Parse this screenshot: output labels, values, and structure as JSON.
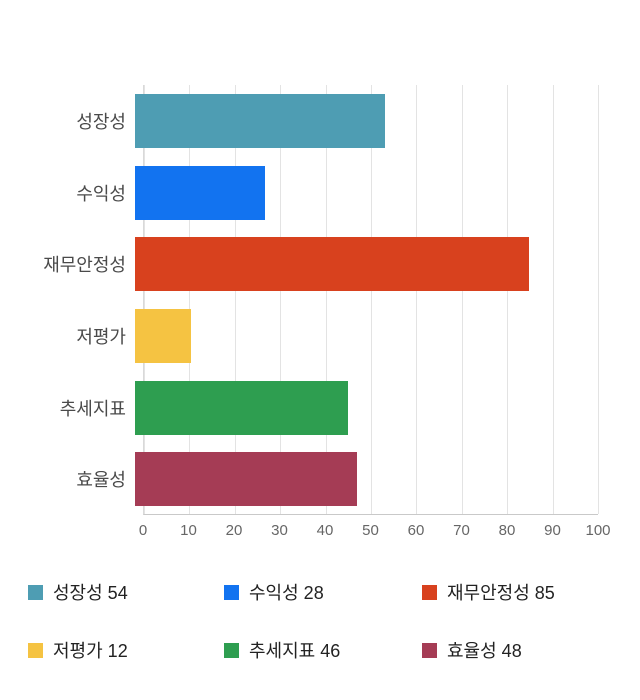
{
  "chart_data": {
    "type": "bar",
    "orientation": "horizontal",
    "title": "",
    "categories": [
      "성장성",
      "수익성",
      "재무안정성",
      "저평가",
      "추세지표",
      "효율성"
    ],
    "values": [
      54,
      28,
      85,
      12,
      46,
      48
    ],
    "colors": [
      "#4E9DB3",
      "#1273F0",
      "#D8411E",
      "#F5C342",
      "#2E9E50",
      "#A53C55"
    ],
    "xlim": [
      0,
      100
    ],
    "xticks": [
      0,
      10,
      20,
      30,
      40,
      50,
      60,
      70,
      80,
      90,
      100
    ],
    "grid": true,
    "legend_position": "bottom",
    "legend_items": [
      {
        "label": "성장성 54",
        "color": "#4E9DB3"
      },
      {
        "label": "수익성 28",
        "color": "#1273F0"
      },
      {
        "label": "재무안정성 85",
        "color": "#D8411E"
      },
      {
        "label": "저평가 12",
        "color": "#F5C342"
      },
      {
        "label": "추세지표 46",
        "color": "#2E9E50"
      },
      {
        "label": "효율성 48",
        "color": "#A53C55"
      }
    ]
  }
}
